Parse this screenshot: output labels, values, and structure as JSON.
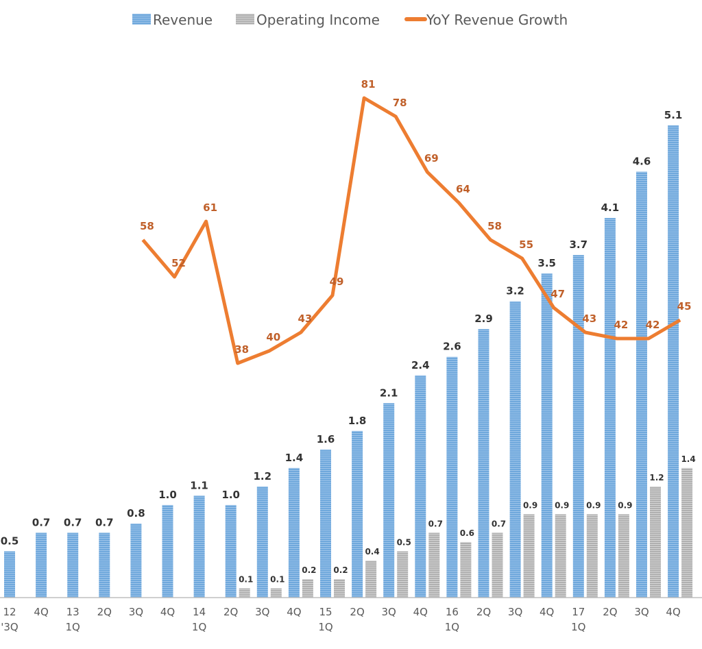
{
  "chart_data": {
    "type": "bar",
    "title": "",
    "xlabel": "",
    "ylabel": "",
    "categories": [
      [
        "12",
        "'3Q"
      ],
      [
        "4Q",
        ""
      ],
      [
        "13",
        "1Q"
      ],
      [
        "2Q",
        ""
      ],
      [
        "3Q",
        ""
      ],
      [
        "4Q",
        ""
      ],
      [
        "14",
        "1Q"
      ],
      [
        "2Q",
        ""
      ],
      [
        "3Q",
        ""
      ],
      [
        "4Q",
        ""
      ],
      [
        "15",
        "1Q"
      ],
      [
        "2Q",
        ""
      ],
      [
        "3Q",
        ""
      ],
      [
        "4Q",
        ""
      ],
      [
        "16",
        "1Q"
      ],
      [
        "2Q",
        ""
      ],
      [
        "3Q",
        ""
      ],
      [
        "4Q",
        ""
      ],
      [
        "17",
        "1Q"
      ],
      [
        "2Q",
        ""
      ],
      [
        "3Q",
        ""
      ],
      [
        "4Q",
        ""
      ]
    ],
    "series": [
      {
        "name": "Revenue",
        "kind": "bar",
        "color": "#5b9bd5",
        "values": [
          0.5,
          0.7,
          0.7,
          0.7,
          0.8,
          1.0,
          1.1,
          1.0,
          1.2,
          1.4,
          1.6,
          1.8,
          2.1,
          2.4,
          2.6,
          2.9,
          3.2,
          3.5,
          3.7,
          4.1,
          4.6,
          5.1
        ]
      },
      {
        "name": "Operating Income",
        "kind": "bar",
        "color": "#a5a5a5",
        "values": [
          null,
          null,
          null,
          null,
          null,
          null,
          null,
          0.1,
          0.1,
          0.2,
          0.2,
          0.4,
          0.5,
          0.7,
          0.6,
          0.7,
          0.9,
          0.9,
          0.9,
          0.9,
          1.2,
          1.4
        ]
      },
      {
        "name": "YoY Revenue Growth",
        "kind": "line",
        "color": "#ed7d31",
        "values": [
          null,
          null,
          null,
          null,
          58,
          52,
          61,
          38,
          40,
          43,
          49,
          81,
          78,
          69,
          64,
          58,
          55,
          47,
          43,
          42,
          42,
          45
        ]
      }
    ],
    "ylim": [
      0,
      5.1
    ],
    "y2lim": [
      0,
      81
    ],
    "legend_position": "top-center",
    "grid": false
  }
}
